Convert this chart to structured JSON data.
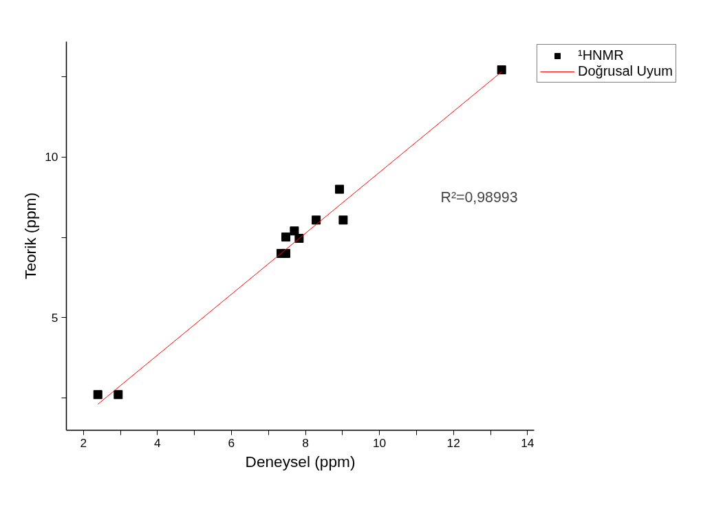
{
  "chart_data": {
    "type": "scatter",
    "xlabel": "Deneysel (ppm)",
    "ylabel": "Teorik (ppm)",
    "annotations": [
      "R²=0,98993"
    ],
    "series": [
      {
        "name": "¹HNMR",
        "color": "#000000",
        "marker": "square",
        "x": [
          2.39,
          2.94,
          7.34,
          7.47,
          7.47,
          7.7,
          7.83,
          8.29,
          8.92,
          9.02,
          13.3
        ],
        "values": [
          2.6,
          2.6,
          7.0,
          7.0,
          7.51,
          7.7,
          7.47,
          8.04,
          9.0,
          8.04,
          12.72
        ]
      },
      {
        "name": "Doğrusal Uyum",
        "type": "line",
        "color": "#ff0000",
        "marker": "none",
        "line_style": "solid",
        "x": [
          2.39,
          13.3
        ],
        "values": [
          2.3,
          12.66
        ]
      }
    ],
    "xlim": [
      1.54,
      14.18
    ],
    "ylim": [
      1.49,
      13.6
    ],
    "xticks": [
      2,
      {
        "value": 3,
        "label": null
      },
      4,
      {
        "value": 5,
        "label": null
      },
      6,
      {
        "value": 7,
        "label": null
      },
      8,
      {
        "value": 9,
        "label": null
      },
      10,
      {
        "value": 11,
        "label": null
      },
      12,
      {
        "value": 13,
        "label": null
      },
      14
    ],
    "yticks": [
      {
        "value": 2.5,
        "label": null
      },
      5,
      {
        "value": 7.5,
        "label": null
      },
      10,
      {
        "value": 12.5,
        "label": null
      }
    ],
    "grid": false,
    "legend": "top right"
  }
}
